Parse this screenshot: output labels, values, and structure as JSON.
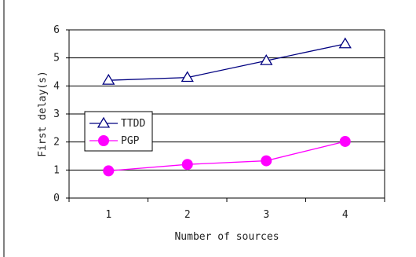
{
  "chart_data": {
    "type": "line",
    "title": "",
    "xlabel": "Number of sources",
    "ylabel": "First delay(s)",
    "categories": [
      "1",
      "2",
      "3",
      "4"
    ],
    "x": [
      1,
      2,
      3,
      4
    ],
    "ylim": [
      0,
      6
    ],
    "yticks": [
      "0",
      "1",
      "2",
      "3",
      "4",
      "5",
      "6"
    ],
    "grid": "horizontal",
    "legend_position": "left-middle",
    "series": [
      {
        "name": "TTDD",
        "values": [
          4.2,
          4.3,
          4.9,
          5.5
        ],
        "color": "#000080",
        "marker": "open-triangle"
      },
      {
        "name": "PGP",
        "values": [
          0.97,
          1.2,
          1.33,
          2.02
        ],
        "color": "#ff00ff",
        "marker": "filled-circle"
      }
    ]
  }
}
